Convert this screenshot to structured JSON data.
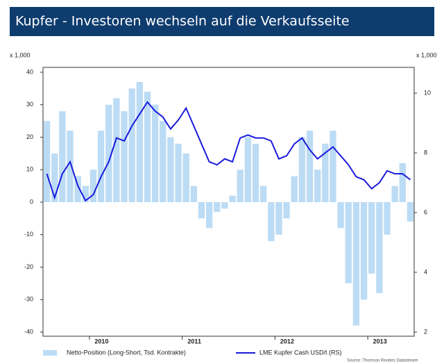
{
  "chart_data": {
    "type": "bar_line",
    "title": "Kupfer -  Investoren wechseln auf die Verkaufsseite",
    "y_unit": "x 1,000",
    "y2_unit": "x 1,000",
    "source": "Source: Thomson Reuters Datastream",
    "categories": [
      null,
      null,
      null,
      null,
      null,
      null,
      "2010",
      null,
      null,
      null,
      null,
      null,
      null,
      null,
      null,
      null,
      null,
      null,
      "2011",
      null,
      null,
      null,
      null,
      null,
      null,
      null,
      null,
      null,
      null,
      null,
      "2012",
      null,
      null,
      null,
      null,
      null,
      null,
      null,
      null,
      null,
      null,
      null,
      "2013",
      null,
      null,
      null,
      null,
      null
    ],
    "series": [
      {
        "name": "Netto-Position (Long-Short, Tsd. Kontrakte)",
        "color": "#bcdcf5",
        "values": [
          25,
          15,
          28,
          22,
          8,
          5,
          10,
          22,
          30,
          32,
          28,
          35,
          37,
          34,
          30,
          25,
          20,
          18,
          15,
          5,
          -5,
          -8,
          -3,
          -2,
          2,
          10,
          20,
          18,
          5,
          -12,
          -10,
          -5,
          8,
          20,
          22,
          10,
          18,
          22,
          -8,
          -25,
          -38,
          -30,
          -22,
          -28,
          -10,
          5,
          12,
          -6
        ]
      },
      {
        "name": "LME Kupfer Cash USD/t (RS)",
        "color": "#1a1adc",
        "axis": "y2",
        "values": [
          7.3,
          6.5,
          7.3,
          7.7,
          6.9,
          6.4,
          6.6,
          7.2,
          7.7,
          8.5,
          8.4,
          8.9,
          9.3,
          9.7,
          9.4,
          9.2,
          8.8,
          9.1,
          9.5,
          8.9,
          8.3,
          7.7,
          7.6,
          7.8,
          7.7,
          8.5,
          8.6,
          8.5,
          8.5,
          8.4,
          7.8,
          7.9,
          8.3,
          8.5,
          8.1,
          7.8,
          8.0,
          8.2,
          7.9,
          7.6,
          7.2,
          7.1,
          6.8,
          7.0,
          7.4,
          7.3,
          7.3,
          7.1
        ]
      }
    ],
    "ylim": [
      -40,
      40
    ],
    "yticks": [
      40,
      30,
      20,
      10,
      0,
      -10,
      -20,
      -30,
      -40
    ],
    "y2lim": [
      2,
      10.7
    ],
    "y2ticks": [
      10,
      8,
      6,
      4,
      2
    ],
    "grid": false
  }
}
